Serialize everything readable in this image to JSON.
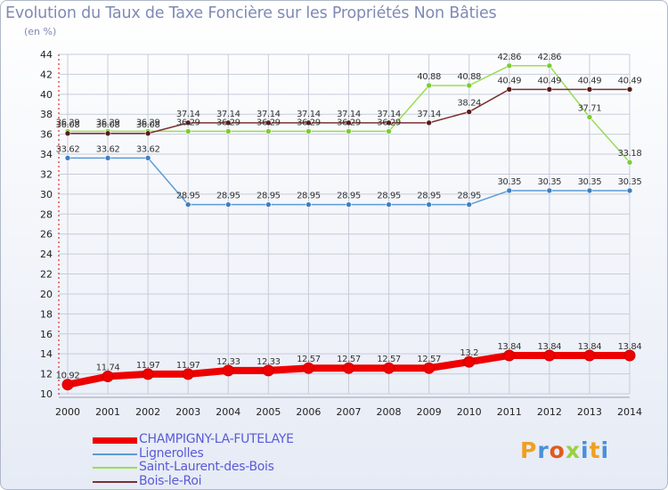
{
  "title": "Evolution du Taux de Taxe Foncière sur les Propriétés Non Bâties",
  "unit_label": "(en %)",
  "logo": "Proxiti",
  "colors": {
    "grid": "#c8ccd8",
    "axis_red": "#e00000",
    "text": "#7f8ab4",
    "legend_text": "#5a5ad8"
  },
  "chart_data": {
    "type": "line",
    "title": "Evolution du Taux de Taxe Foncière sur les Propriétés Non Bâties",
    "ylabel": "(en %)",
    "xlabel": "",
    "ylim": [
      10,
      44
    ],
    "yticks": [
      10,
      12,
      14,
      16,
      18,
      20,
      22,
      24,
      26,
      28,
      30,
      32,
      34,
      36,
      38,
      40,
      42,
      44
    ],
    "categories": [
      "2000",
      "2001",
      "2002",
      "2003",
      "2004",
      "2005",
      "2006",
      "2007",
      "2008",
      "2009",
      "2010",
      "2011",
      "2012",
      "2013",
      "2014"
    ],
    "legend_position": "bottom-left",
    "series": [
      {
        "name": "CHAMPIGNY-LA-FUTELAYE",
        "color": "#ee0000",
        "marker": "#ee0000",
        "width": 8,
        "values": [
          10.92,
          11.74,
          11.97,
          11.97,
          12.33,
          12.33,
          12.57,
          12.57,
          12.57,
          12.57,
          13.2,
          13.84,
          13.84,
          13.84,
          13.84
        ],
        "labels": [
          "10.92",
          "11.74",
          "11.97",
          "11.97",
          "12.33",
          "12.33",
          "12.57",
          "12.57",
          "12.57",
          "12.57",
          "13.2",
          "13.84",
          "13.84",
          "13.84",
          "13.84"
        ]
      },
      {
        "name": "Lignerolles",
        "color": "#5b9bd5",
        "marker": "#3f7fc0",
        "width": 1.5,
        "values": [
          33.62,
          33.62,
          33.62,
          28.95,
          28.95,
          28.95,
          28.95,
          28.95,
          28.95,
          28.95,
          28.95,
          30.35,
          30.35,
          30.35,
          30.35
        ],
        "labels": [
          "33.62",
          "33.62",
          "33.62",
          "28.95",
          "28.95",
          "28.95",
          "28.95",
          "28.95",
          "28.95",
          "28.95",
          "28.95",
          "30.35",
          "30.35",
          "30.35",
          "30.35"
        ]
      },
      {
        "name": "Saint-Laurent-des-Bois",
        "color": "#99dd55",
        "marker": "#7ccc33",
        "width": 1.5,
        "values": [
          36.29,
          36.29,
          36.29,
          36.29,
          36.29,
          36.29,
          36.29,
          36.29,
          36.29,
          40.88,
          40.88,
          42.86,
          42.86,
          37.71,
          33.18
        ],
        "labels": [
          "36.29",
          "36.29",
          "36.29",
          "36.29",
          "36.29",
          "36.29",
          "36.29",
          "36.29",
          "36.29",
          "40.88",
          "40.88",
          "42.86",
          "42.86",
          "37.71",
          "33.18"
        ]
      },
      {
        "name": "Bois-le-Roi",
        "color": "#7b3030",
        "marker": "#5a1a1a",
        "width": 1.5,
        "values": [
          36.08,
          36.08,
          36.08,
          37.14,
          37.14,
          37.14,
          37.14,
          37.14,
          37.14,
          37.14,
          38.24,
          40.49,
          40.49,
          40.49,
          40.49
        ],
        "labels": [
          "36.08",
          "36.08",
          "36.08",
          "37.14",
          "37.14",
          "37.14",
          "37.14",
          "37.14",
          "37.14",
          "37.14",
          "38.24",
          "40.49",
          "40.49",
          "40.49",
          "40.49"
        ]
      }
    ]
  }
}
